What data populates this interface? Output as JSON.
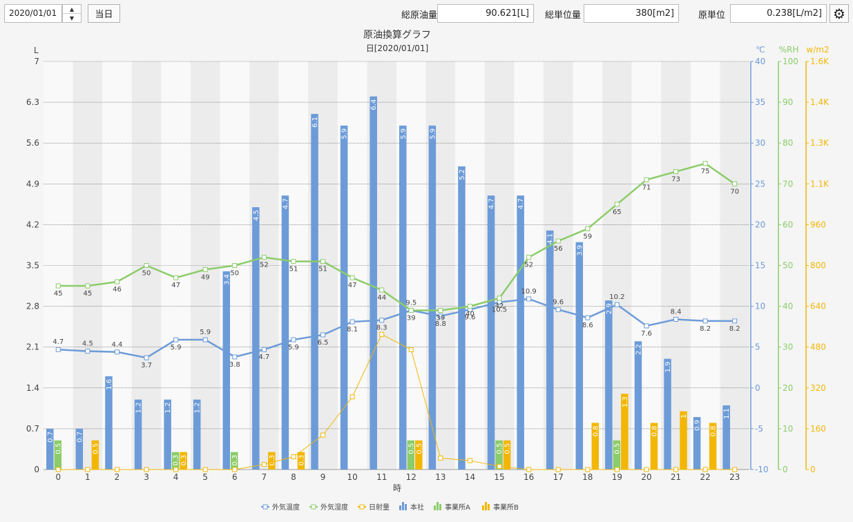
{
  "toolbar": {
    "date_value": "2020/01/01",
    "spin_up_glyph": "▲",
    "spin_down_glyph": "▼",
    "today_label": "当日",
    "total_oil_label": "総原油量",
    "total_oil_value": "90.621[L]",
    "total_unit_label": "総単位量",
    "total_unit_value": "380[m2]",
    "unit_rate_label": "原単位",
    "unit_rate_value": "0.238[L/m2]",
    "settings_icon": "gear-icon"
  },
  "chart_data": {
    "type": "bar",
    "title": "原油換算グラフ",
    "subtitle": "日[2020/01/01]",
    "xlabel": "時",
    "categories": [
      "0",
      "1",
      "2",
      "3",
      "4",
      "5",
      "6",
      "7",
      "8",
      "9",
      "10",
      "11",
      "12",
      "13",
      "14",
      "15",
      "16",
      "17",
      "18",
      "19",
      "20",
      "21",
      "22",
      "23"
    ],
    "axes": {
      "left": {
        "label": "L",
        "min": 0,
        "max": 7,
        "ticks": [
          "0",
          "0.7",
          "1.4",
          "2.1",
          "2.8",
          "3.5",
          "4.2",
          "4.9",
          "5.6",
          "6.3",
          "7"
        ]
      },
      "temp": {
        "label": "℃",
        "min": -10,
        "max": 40,
        "ticks": [
          "-10",
          "-5",
          "0",
          "5",
          "10",
          "15",
          "20",
          "25",
          "30",
          "35",
          "40"
        ],
        "color": "#6c9bd8"
      },
      "humidity": {
        "label": "%RH",
        "min": 0,
        "max": 100,
        "ticks": [
          "0",
          "10",
          "20",
          "30",
          "40",
          "50",
          "60",
          "70",
          "80",
          "90",
          "100"
        ],
        "color": "#8ccc6a"
      },
      "solar": {
        "label": "w/m2",
        "min": 0,
        "max": 1600,
        "ticks": [
          "0",
          "160",
          "320",
          "480",
          "640",
          "800",
          "960",
          "1.1K",
          "1.3K",
          "1.4K",
          "1.6K"
        ],
        "color": "#f2b705"
      }
    },
    "bar_series": [
      {
        "name": "本社",
        "color": "#6c9bd8",
        "values": [
          0.7,
          0.7,
          1.6,
          1.2,
          1.2,
          1.2,
          3.4,
          4.5,
          4.7,
          6.1,
          5.9,
          6.4,
          5.9,
          5.9,
          5.2,
          4.7,
          4.7,
          4.1,
          3.9,
          2.9,
          2.2,
          1.9,
          0.9,
          1.1
        ],
        "labels": [
          "0.7",
          "0.7",
          "1.6",
          "1.2",
          "1.2",
          "1.2",
          "3.4",
          "4.5",
          "4.7",
          "6.1",
          "5.9",
          "6.4",
          "5.9",
          "5.9",
          "5.2",
          "4.7",
          "4.7",
          "4.1",
          "3.9",
          "2.9",
          "2.2",
          "1.9",
          "0.9",
          "1.1"
        ]
      },
      {
        "name": "事業所A",
        "color": "#8ccc6a",
        "values": [
          0.5,
          0,
          0,
          0,
          0.3,
          0,
          0.3,
          0,
          0,
          0,
          0,
          0,
          0.5,
          0,
          0,
          0.5,
          0,
          0,
          0,
          0.5,
          0,
          0,
          0,
          0
        ],
        "labels": [
          "0.5",
          "",
          "",
          "",
          "0.3",
          "",
          "0.3",
          "",
          "",
          "",
          "",
          "",
          "0.5",
          "",
          "",
          "0.5",
          "",
          "",
          "",
          "0.5",
          "",
          "",
          "",
          ""
        ]
      },
      {
        "name": "事業所B",
        "color": "#f2b705",
        "values": [
          0,
          0.5,
          0,
          0,
          0.3,
          0,
          0,
          0.3,
          0.3,
          0,
          0,
          0,
          0.5,
          0,
          0,
          0.5,
          0,
          0,
          0.8,
          1.3,
          0.8,
          1,
          0.8,
          0
        ],
        "labels": [
          "",
          "0.5",
          "",
          "",
          "0.3",
          "",
          "",
          "0.3",
          "0.3",
          "",
          "",
          "",
          "0.5",
          "",
          "",
          "0.5",
          "",
          "",
          "0.8",
          "1.3",
          "0.8",
          "1",
          "0.8",
          ""
        ]
      }
    ],
    "line_series": [
      {
        "name": "外気温度",
        "axis": "temp",
        "color": "#6c9bd8",
        "values": [
          4.7,
          4.5,
          4.4,
          3.7,
          5.9,
          5.9,
          3.8,
          4.7,
          5.9,
          6.5,
          8.1,
          8.3,
          9.5,
          8.8,
          9.6,
          10.5,
          10.9,
          9.6,
          8.6,
          10.2,
          7.6,
          8.4,
          8.2,
          8.2
        ],
        "labels": [
          "4.7",
          "4.5",
          "4.4",
          "3.7",
          "5.9",
          "5.9",
          "3.8",
          "4.7",
          "5.9",
          "6.5",
          "8.1",
          "8.3",
          "9.5",
          "8.8",
          "9.6",
          "10.5",
          "10.9",
          "9.6",
          "8.6",
          "10.2",
          "7.6",
          "8.4",
          "8.2",
          "8.2"
        ]
      },
      {
        "name": "外気湿度",
        "axis": "humidity",
        "color": "#8ccc6a",
        "values": [
          45,
          45,
          46,
          50,
          47,
          49,
          50,
          52,
          51,
          51,
          47,
          44,
          39,
          39,
          40,
          42,
          52,
          56,
          59,
          65,
          71,
          73,
          75,
          70
        ],
        "labels": [
          "45",
          "45",
          "46",
          "50",
          "47",
          "49",
          "50",
          "52",
          "51",
          "51",
          "47",
          "44",
          "39",
          "39",
          "40",
          "42",
          "52",
          "56",
          "59",
          "65",
          "71",
          "73",
          "75",
          "70"
        ]
      },
      {
        "name": "日射量",
        "axis": "solar",
        "color": "#f2b705",
        "values": [
          0,
          0,
          0,
          0,
          0,
          0,
          0,
          20,
          50,
          135,
          285,
          530,
          470,
          45,
          35,
          12,
          0,
          0,
          0,
          0,
          0,
          0,
          0,
          0
        ],
        "labels": []
      }
    ],
    "legend": {
      "placement": "bottom",
      "items": [
        {
          "name": "外気温度",
          "kind": "line",
          "color": "#6c9bd8"
        },
        {
          "name": "外気湿度",
          "kind": "line",
          "color": "#8ccc6a"
        },
        {
          "name": "日射量",
          "kind": "line",
          "color": "#f2b705"
        },
        {
          "name": "本社",
          "kind": "bar",
          "color": "#6c9bd8"
        },
        {
          "name": "事業所A",
          "kind": "bar",
          "color": "#8ccc6a"
        },
        {
          "name": "事業所B",
          "kind": "bar",
          "color": "#f2b705"
        }
      ]
    },
    "grid": true
  }
}
